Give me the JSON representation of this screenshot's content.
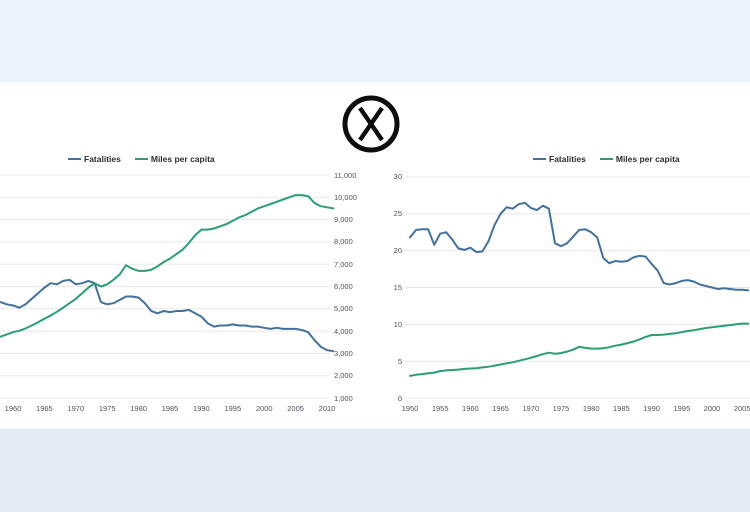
{
  "background": {
    "top_band_color": "#e9f1fb",
    "bottom_band_color": "#e3ecf5",
    "content_color": "#ffffff"
  },
  "center_icon": {
    "name": "circled-x",
    "glyph": "X",
    "color": "#0d0d0d"
  },
  "styles": {
    "fatalities_line_color": "#41719c",
    "miles_line_color": "#2a9e70",
    "gridline_color": "#e8e8e8",
    "tick_text_color": "#4d525a",
    "legend_text_color": "#2e2e2e"
  },
  "chart_data": [
    {
      "id": "left-chart",
      "type": "line",
      "title": "",
      "grid": true,
      "legend_position": "top-center",
      "legend": [
        {
          "label": "Fatalities"
        },
        {
          "label": "Miles per capita"
        }
      ],
      "x_axis": {
        "visible_range": [
          1958,
          2011
        ],
        "ticks": [
          {
            "value": 1960,
            "label": "1960"
          },
          {
            "value": 1965,
            "label": "1965"
          },
          {
            "value": 1970,
            "label": "1970"
          },
          {
            "value": 1975,
            "label": "1975"
          },
          {
            "value": 1980,
            "label": "1980"
          },
          {
            "value": 1985,
            "label": "1985"
          },
          {
            "value": 1990,
            "label": "1990"
          },
          {
            "value": 1995,
            "label": "1995"
          },
          {
            "value": 2000,
            "label": "2000"
          },
          {
            "value": 2005,
            "label": "2005"
          },
          {
            "value": 2010,
            "label": "2010"
          }
        ]
      },
      "y_axis": {
        "side": "right",
        "range": [
          1000,
          11000
        ],
        "ticks": [
          {
            "value": 1000,
            "label": "1,000"
          },
          {
            "value": 2000,
            "label": "2,000"
          },
          {
            "value": 3000,
            "label": "3,000"
          },
          {
            "value": 4000,
            "label": "4,000"
          },
          {
            "value": 5000,
            "label": "5,000"
          },
          {
            "value": 6000,
            "label": "6,000"
          },
          {
            "value": 7000,
            "label": "7,000"
          },
          {
            "value": 8000,
            "label": "8,000"
          },
          {
            "value": 9000,
            "label": "9,000"
          },
          {
            "value": 10000,
            "label": "10,000"
          },
          {
            "value": 11000,
            "label": "11,000"
          }
        ]
      },
      "years": [
        1958,
        1959,
        1960,
        1961,
        1962,
        1963,
        1964,
        1965,
        1966,
        1967,
        1968,
        1969,
        1970,
        1971,
        1972,
        1973,
        1974,
        1975,
        1976,
        1977,
        1978,
        1979,
        1980,
        1981,
        1982,
        1983,
        1984,
        1985,
        1986,
        1987,
        1988,
        1989,
        1990,
        1991,
        1992,
        1993,
        1994,
        1995,
        1996,
        1997,
        1998,
        1999,
        2000,
        2001,
        2002,
        2003,
        2004,
        2005,
        2006,
        2007,
        2008,
        2009,
        2010,
        2011
      ],
      "series": [
        {
          "name": "Fatalities",
          "units": "as displayed against right axis scale",
          "values": [
            5300,
            5200,
            5150,
            5050,
            5200,
            5450,
            5700,
            5950,
            6150,
            6100,
            6250,
            6300,
            6100,
            6150,
            6250,
            6150,
            5300,
            5200,
            5250,
            5400,
            5550,
            5550,
            5500,
            5250,
            4900,
            4800,
            4900,
            4850,
            4900,
            4900,
            4950,
            4800,
            4650,
            4350,
            4200,
            4250,
            4250,
            4300,
            4250,
            4250,
            4200,
            4200,
            4150,
            4100,
            4150,
            4100,
            4100,
            4100,
            4050,
            3950,
            3600,
            3300,
            3150,
            3100
          ]
        },
        {
          "name": "Miles per capita",
          "units": "miles (right axis)",
          "values": [
            3750,
            3850,
            3950,
            4020,
            4120,
            4250,
            4400,
            4550,
            4700,
            4870,
            5050,
            5250,
            5450,
            5700,
            5950,
            6150,
            6000,
            6100,
            6300,
            6550,
            6950,
            6800,
            6700,
            6700,
            6750,
            6900,
            7100,
            7250,
            7450,
            7650,
            7950,
            8300,
            8550,
            8550,
            8600,
            8700,
            8800,
            8950,
            9100,
            9200,
            9350,
            9500,
            9600,
            9700,
            9800,
            9900,
            10000,
            10100,
            10100,
            10050,
            9750,
            9600,
            9550,
            9500
          ]
        }
      ]
    },
    {
      "id": "right-chart",
      "type": "line",
      "title": "",
      "grid": true,
      "legend_position": "top-center",
      "legend": [
        {
          "label": "Fatalities"
        },
        {
          "label": "Miles per capita"
        }
      ],
      "x_axis": {
        "visible_range": [
          1950,
          2006
        ],
        "ticks": [
          {
            "value": 1950,
            "label": "1950"
          },
          {
            "value": 1955,
            "label": "1955"
          },
          {
            "value": 1960,
            "label": "1960"
          },
          {
            "value": 1965,
            "label": "1965"
          },
          {
            "value": 1970,
            "label": "1970"
          },
          {
            "value": 1975,
            "label": "1975"
          },
          {
            "value": 1980,
            "label": "1980"
          },
          {
            "value": 1985,
            "label": "1985"
          },
          {
            "value": 1990,
            "label": "1990"
          },
          {
            "value": 1995,
            "label": "1995"
          },
          {
            "value": 2000,
            "label": "2000"
          },
          {
            "value": 2005,
            "label": "2005"
          }
        ]
      },
      "y_axis": {
        "side": "left",
        "range": [
          0,
          30
        ],
        "ticks": [
          {
            "value": 0,
            "label": "0"
          },
          {
            "value": 5,
            "label": "5"
          },
          {
            "value": 10,
            "label": "10"
          },
          {
            "value": 15,
            "label": "15"
          },
          {
            "value": 20,
            "label": "20"
          },
          {
            "value": 25,
            "label": "25"
          },
          {
            "value": 30,
            "label": "30"
          }
        ]
      },
      "years": [
        1950,
        1951,
        1952,
        1953,
        1954,
        1955,
        1956,
        1957,
        1958,
        1959,
        1960,
        1961,
        1962,
        1963,
        1964,
        1965,
        1966,
        1967,
        1968,
        1969,
        1970,
        1971,
        1972,
        1973,
        1974,
        1975,
        1976,
        1977,
        1978,
        1979,
        1980,
        1981,
        1982,
        1983,
        1984,
        1985,
        1986,
        1987,
        1988,
        1989,
        1990,
        1991,
        1992,
        1993,
        1994,
        1995,
        1996,
        1997,
        1998,
        1999,
        2000,
        2001,
        2002,
        2003,
        2004,
        2005,
        2006
      ],
      "series": [
        {
          "name": "Fatalities",
          "units": "per capita rate",
          "values": [
            21.8,
            22.8,
            22.9,
            22.9,
            20.8,
            22.3,
            22.5,
            21.5,
            20.3,
            20.1,
            20.4,
            19.8,
            19.9,
            21.3,
            23.5,
            25.0,
            25.9,
            25.7,
            26.3,
            26.5,
            25.8,
            25.5,
            26.1,
            25.7,
            21.0,
            20.6,
            21.0,
            21.9,
            22.8,
            22.9,
            22.5,
            21.8,
            19.0,
            18.3,
            18.6,
            18.5,
            18.6,
            19.1,
            19.3,
            19.2,
            18.2,
            17.3,
            15.6,
            15.4,
            15.6,
            15.9,
            16.0,
            15.8,
            15.4,
            15.2,
            15.0,
            14.8,
            14.9,
            14.8,
            14.7,
            14.7,
            14.6
          ]
        },
        {
          "name": "Miles per capita",
          "units": "thousands of miles",
          "values": [
            3.0,
            3.15,
            3.25,
            3.35,
            3.45,
            3.65,
            3.75,
            3.8,
            3.85,
            3.95,
            4.0,
            4.05,
            4.15,
            4.25,
            4.4,
            4.55,
            4.7,
            4.85,
            5.05,
            5.25,
            5.45,
            5.7,
            5.95,
            6.15,
            6.0,
            6.1,
            6.3,
            6.55,
            6.95,
            6.8,
            6.7,
            6.7,
            6.75,
            6.9,
            7.1,
            7.25,
            7.45,
            7.65,
            7.95,
            8.3,
            8.55,
            8.55,
            8.6,
            8.7,
            8.8,
            8.95,
            9.1,
            9.2,
            9.35,
            9.5,
            9.6,
            9.7,
            9.8,
            9.9,
            10.0,
            10.1,
            10.1
          ]
        }
      ]
    }
  ]
}
